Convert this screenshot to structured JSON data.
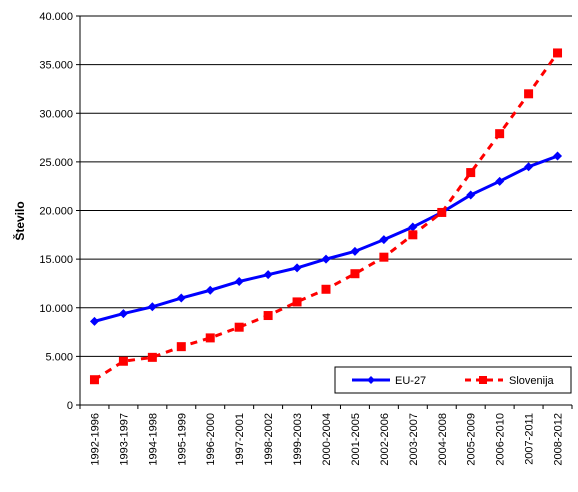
{
  "chart_data": {
    "type": "line",
    "title": "",
    "xlabel": "",
    "ylabel": "Število",
    "ylim": [
      0,
      40000
    ],
    "yticks": [
      "0",
      "5.000",
      "10.000",
      "15.000",
      "20.000",
      "25.000",
      "30.000",
      "35.000",
      "40.000"
    ],
    "grid": true,
    "legend_position": "bottom-right",
    "categories": [
      "1992-1996",
      "1993-1997",
      "1994-1998",
      "1995-1999",
      "1996-2000",
      "1997-2001",
      "1998-2002",
      "1999-2003",
      "2000-2004",
      "2001-2005",
      "2002-2006",
      "2003-2007",
      "2004-2008",
      "2005-2009",
      "2006-2010",
      "2007-2011",
      "2008-2012"
    ],
    "series": [
      {
        "name": "EU-27",
        "color": "#0000ff",
        "marker": "diamond",
        "line": "solid",
        "values": [
          8600,
          9400,
          10100,
          11000,
          11800,
          12700,
          13400,
          14100,
          15000,
          15800,
          17000,
          18300,
          19800,
          21600,
          23000,
          24500,
          25600
        ]
      },
      {
        "name": "Slovenija",
        "color": "#ff0000",
        "marker": "square",
        "line": "dashed",
        "values": [
          2600,
          4500,
          4900,
          6000,
          6900,
          8000,
          9200,
          10600,
          11900,
          13500,
          15200,
          17500,
          19800,
          23900,
          27900,
          32000,
          36200
        ]
      }
    ]
  }
}
